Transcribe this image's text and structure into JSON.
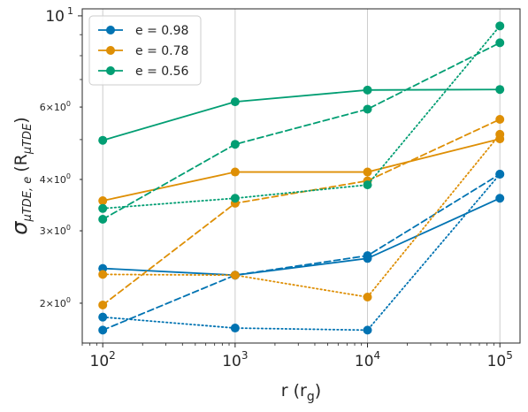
{
  "chart_data": {
    "type": "line",
    "xscale": "log",
    "yscale": "log",
    "xlim": [
      70,
      142000
    ],
    "ylim": [
      1.6,
      10.4
    ],
    "grid": "vertical",
    "xlabel": "r (r",
    "xlabel_sub": "g",
    "xlabel_close": ")",
    "ylabel_sigma": "σ",
    "ylabel_sub": "μTDE, e",
    "ylabel_unit": "(R",
    "ylabel_unit_sub": "μTDE",
    "ylabel_close": ")",
    "x_ticks": [
      {
        "value": 100,
        "base": "10",
        "exp": "2"
      },
      {
        "value": 1000,
        "base": "10",
        "exp": "3"
      },
      {
        "value": 10000,
        "base": "10",
        "exp": "4"
      },
      {
        "value": 100000,
        "base": "10",
        "exp": "5"
      }
    ],
    "y_ticks": [
      {
        "value": 10,
        "base": "10",
        "exp": "1",
        "major": true
      },
      {
        "value": 6,
        "pre": "6×10",
        "exp": "0",
        "major": false
      },
      {
        "value": 4,
        "pre": "4×10",
        "exp": "0",
        "major": false
      },
      {
        "value": 3,
        "pre": "3×10",
        "exp": "0",
        "major": false
      },
      {
        "value": 2,
        "pre": "2×10",
        "exp": "0",
        "major": false
      }
    ],
    "x": [
      100,
      1000,
      10000,
      100000
    ],
    "series": [
      {
        "name": "e = 0.98",
        "color": "#0173b2",
        "style": "solid",
        "values": [
          2.43,
          2.34,
          2.57,
          3.6
        ]
      },
      {
        "name": "",
        "color": "#0173b2",
        "style": "dashed",
        "values": [
          1.72,
          2.34,
          2.61,
          4.12
        ]
      },
      {
        "name": "",
        "color": "#0173b2",
        "style": "dotted",
        "values": [
          1.85,
          1.74,
          1.72,
          4.12
        ]
      },
      {
        "name": "e = 0.78",
        "color": "#de8f05",
        "style": "solid",
        "values": [
          3.55,
          4.17,
          4.17,
          5.02
        ]
      },
      {
        "name": "",
        "color": "#de8f05",
        "style": "dashed",
        "values": [
          1.98,
          3.5,
          3.97,
          5.6
        ]
      },
      {
        "name": "",
        "color": "#de8f05",
        "style": "dotted",
        "values": [
          2.35,
          2.34,
          2.07,
          5.15
        ]
      },
      {
        "name": "e = 0.56",
        "color": "#029e73",
        "style": "solid",
        "values": [
          4.98,
          6.18,
          6.6,
          6.62
        ]
      },
      {
        "name": "",
        "color": "#029e73",
        "style": "dashed",
        "values": [
          3.2,
          4.87,
          5.93,
          8.6
        ]
      },
      {
        "name": "",
        "color": "#029e73",
        "style": "dotted",
        "values": [
          3.4,
          3.6,
          3.88,
          9.45
        ]
      }
    ],
    "legend": {
      "placement": "top-left",
      "entries": [
        {
          "label": "e = 0.98",
          "color": "#0173b2"
        },
        {
          "label": "e = 0.78",
          "color": "#de8f05"
        },
        {
          "label": "e = 0.56",
          "color": "#029e73"
        }
      ]
    }
  }
}
